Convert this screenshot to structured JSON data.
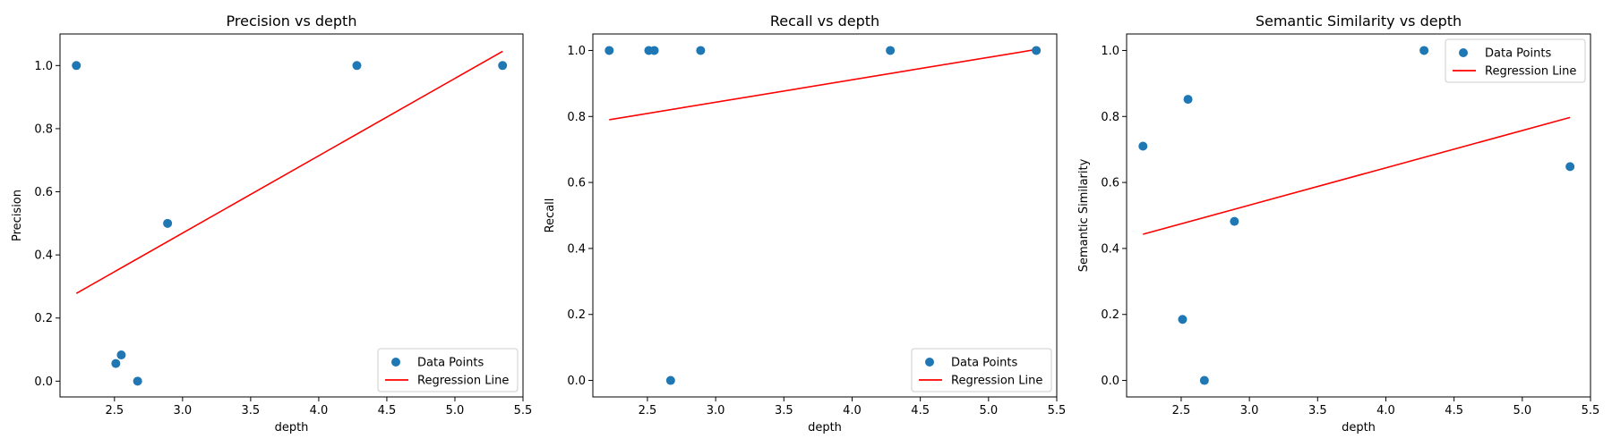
{
  "colors": {
    "points": "#1f77b4",
    "regression": "#ff0000",
    "axes": "#000000",
    "legend_border": "#cccccc"
  },
  "chart_data": [
    {
      "type": "scatter",
      "title": "Precision vs depth",
      "xlabel": "depth",
      "ylabel": "Precision",
      "xlim": [
        2.1,
        5.5
      ],
      "ylim": [
        -0.05,
        1.1
      ],
      "xticks": [
        "2.5",
        "3.0",
        "3.5",
        "4.0",
        "4.5",
        "5.0",
        "5.5"
      ],
      "yticks": [
        "0.0",
        "0.2",
        "0.4",
        "0.6",
        "0.8",
        "1.0"
      ],
      "grid": false,
      "legend_position": "lower-right",
      "series": [
        {
          "name": "Data Points",
          "kind": "scatter",
          "x": [
            2.22,
            2.51,
            2.55,
            2.67,
            2.89,
            4.28,
            5.35
          ],
          "y": [
            1.0,
            0.056,
            0.083,
            0.0,
            0.5,
            1.0,
            1.0
          ]
        },
        {
          "name": "Regression Line",
          "kind": "line",
          "x": [
            2.22,
            5.35
          ],
          "y": [
            0.278,
            1.045
          ]
        }
      ]
    },
    {
      "type": "scatter",
      "title": "Recall vs depth",
      "xlabel": "depth",
      "ylabel": "Recall",
      "xlim": [
        2.1,
        5.5
      ],
      "ylim": [
        -0.05,
        1.05
      ],
      "xticks": [
        "2.5",
        "3.0",
        "3.5",
        "4.0",
        "4.5",
        "5.0",
        "5.5"
      ],
      "yticks": [
        "0.0",
        "0.2",
        "0.4",
        "0.6",
        "0.8",
        "1.0"
      ],
      "grid": false,
      "legend_position": "lower-right",
      "series": [
        {
          "name": "Data Points",
          "kind": "scatter",
          "x": [
            2.22,
            2.51,
            2.55,
            2.67,
            2.89,
            4.28,
            5.35
          ],
          "y": [
            1.0,
            1.0,
            1.0,
            0.0,
            1.0,
            1.0,
            1.0
          ]
        },
        {
          "name": "Regression Line",
          "kind": "line",
          "x": [
            2.22,
            5.35
          ],
          "y": [
            0.79,
            1.003
          ]
        }
      ]
    },
    {
      "type": "scatter",
      "title": "Semantic Similarity vs depth",
      "xlabel": "depth",
      "ylabel": "Semantic Similarity",
      "xlim": [
        2.1,
        5.5
      ],
      "ylim": [
        -0.05,
        1.05
      ],
      "xticks": [
        "2.5",
        "3.0",
        "3.5",
        "4.0",
        "4.5",
        "5.0",
        "5.5"
      ],
      "yticks": [
        "0.0",
        "0.2",
        "0.4",
        "0.6",
        "0.8",
        "1.0"
      ],
      "grid": false,
      "legend_position": "upper-right",
      "series": [
        {
          "name": "Data Points",
          "kind": "scatter",
          "x": [
            2.22,
            2.51,
            2.55,
            2.67,
            2.89,
            4.28,
            5.35
          ],
          "y": [
            0.71,
            0.185,
            0.852,
            0.0,
            0.482,
            1.0,
            0.648
          ]
        },
        {
          "name": "Regression Line",
          "kind": "line",
          "x": [
            2.22,
            5.35
          ],
          "y": [
            0.443,
            0.797
          ]
        }
      ]
    }
  ]
}
